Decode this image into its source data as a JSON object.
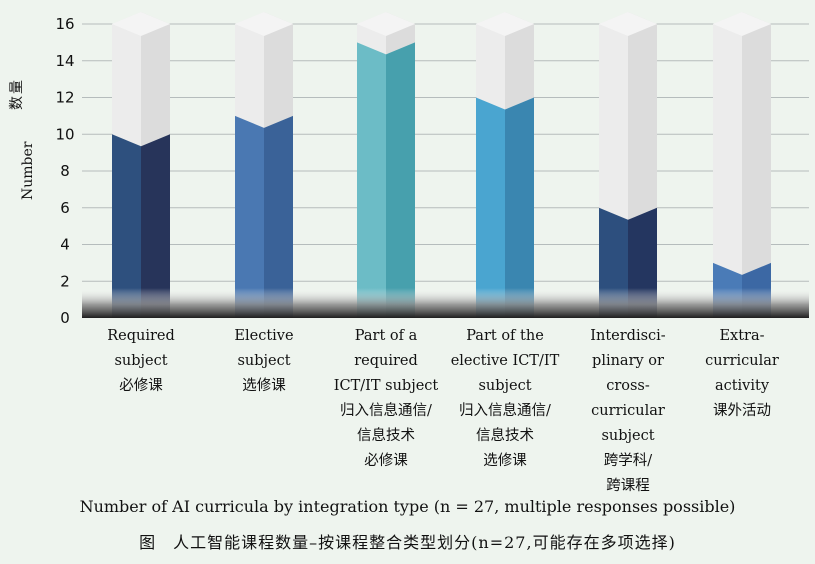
{
  "chart_data": {
    "type": "bar",
    "categories": [
      [
        "Required",
        "subject",
        "必修课"
      ],
      [
        "Elective",
        "subject",
        "选修课"
      ],
      [
        "Part of a",
        "required",
        "ICT/IT subject",
        "归入信息通信/",
        "信息技术",
        "必修课"
      ],
      [
        "Part of the",
        "elective ICT/IT",
        "subject",
        "归入信息通信/",
        "信息技术",
        "选修课"
      ],
      [
        "Interdisci-",
        "plinary or",
        "cross-",
        "curricular",
        "subject",
        "跨学科/",
        "跨课程"
      ],
      [
        "Extra-",
        "curricular",
        "activity",
        "课外活动"
      ]
    ],
    "values": [
      10,
      11,
      15,
      12,
      6,
      3
    ],
    "max_value": 16,
    "ylim": [
      0,
      16
    ],
    "yticks": [
      0,
      2,
      4,
      6,
      8,
      10,
      12,
      14,
      16
    ],
    "ylabel_en": "Number",
    "ylabel_zh": "数量",
    "grid": true,
    "colors": {
      "bar_left": [
        "#2e507e",
        "#4a78b2",
        "#6cbcc6",
        "#4aa5d0",
        "#2d4f7e",
        "#4a7bb7"
      ],
      "bar_right": [
        "#27345a",
        "#3a6298",
        "#47a0ad",
        "#3a86b0",
        "#243660",
        "#3c68a4"
      ],
      "empty_left": "#ececec",
      "empty_right": "#dcdcdc",
      "grid": "#b5bcbc",
      "base_dark": "#3a3a3a"
    }
  },
  "caption": {
    "en": "Number of AI curricula by integration type (n = 27, multiple responses possible)",
    "zh": "图　人工智能课程数量–按课程整合类型划分(n=27,可能存在多项选择)"
  }
}
